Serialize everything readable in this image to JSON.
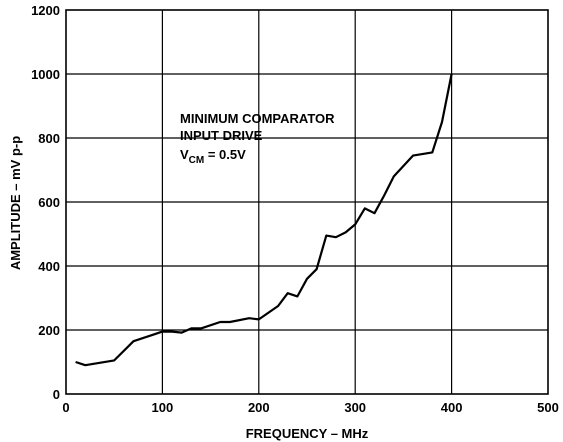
{
  "chart_data": {
    "type": "line",
    "xlabel": "FREQUENCY – MHz",
    "ylabel": "AMPLITUDE – mV p-p",
    "xlim": [
      0,
      500
    ],
    "ylim": [
      0,
      1200
    ],
    "xticks": [
      "0",
      "100",
      "200",
      "300",
      "400",
      "500"
    ],
    "yticks": [
      "0",
      "200",
      "400",
      "600",
      "800",
      "1000",
      "1200"
    ],
    "grid": true,
    "annotation": {
      "line1": "MINIMUM COMPARATOR",
      "line2": "INPUT DRIVE",
      "line3_prefix": "V",
      "line3_sub": "CM",
      "line3_suffix": " = 0.5V"
    },
    "series": [
      {
        "x": [
          10,
          20,
          50,
          70,
          90,
          100,
          110,
          120,
          130,
          140,
          160,
          170,
          190,
          200,
          220,
          230,
          240,
          250,
          260,
          270,
          280,
          290,
          300,
          310,
          320,
          330,
          340,
          360,
          380,
          390,
          400
        ],
        "y": [
          100,
          90,
          105,
          165,
          185,
          195,
          195,
          192,
          205,
          205,
          225,
          225,
          237,
          233,
          275,
          315,
          305,
          360,
          390,
          495,
          490,
          505,
          530,
          580,
          565,
          620,
          680,
          745,
          755,
          850,
          1000
        ]
      }
    ]
  }
}
